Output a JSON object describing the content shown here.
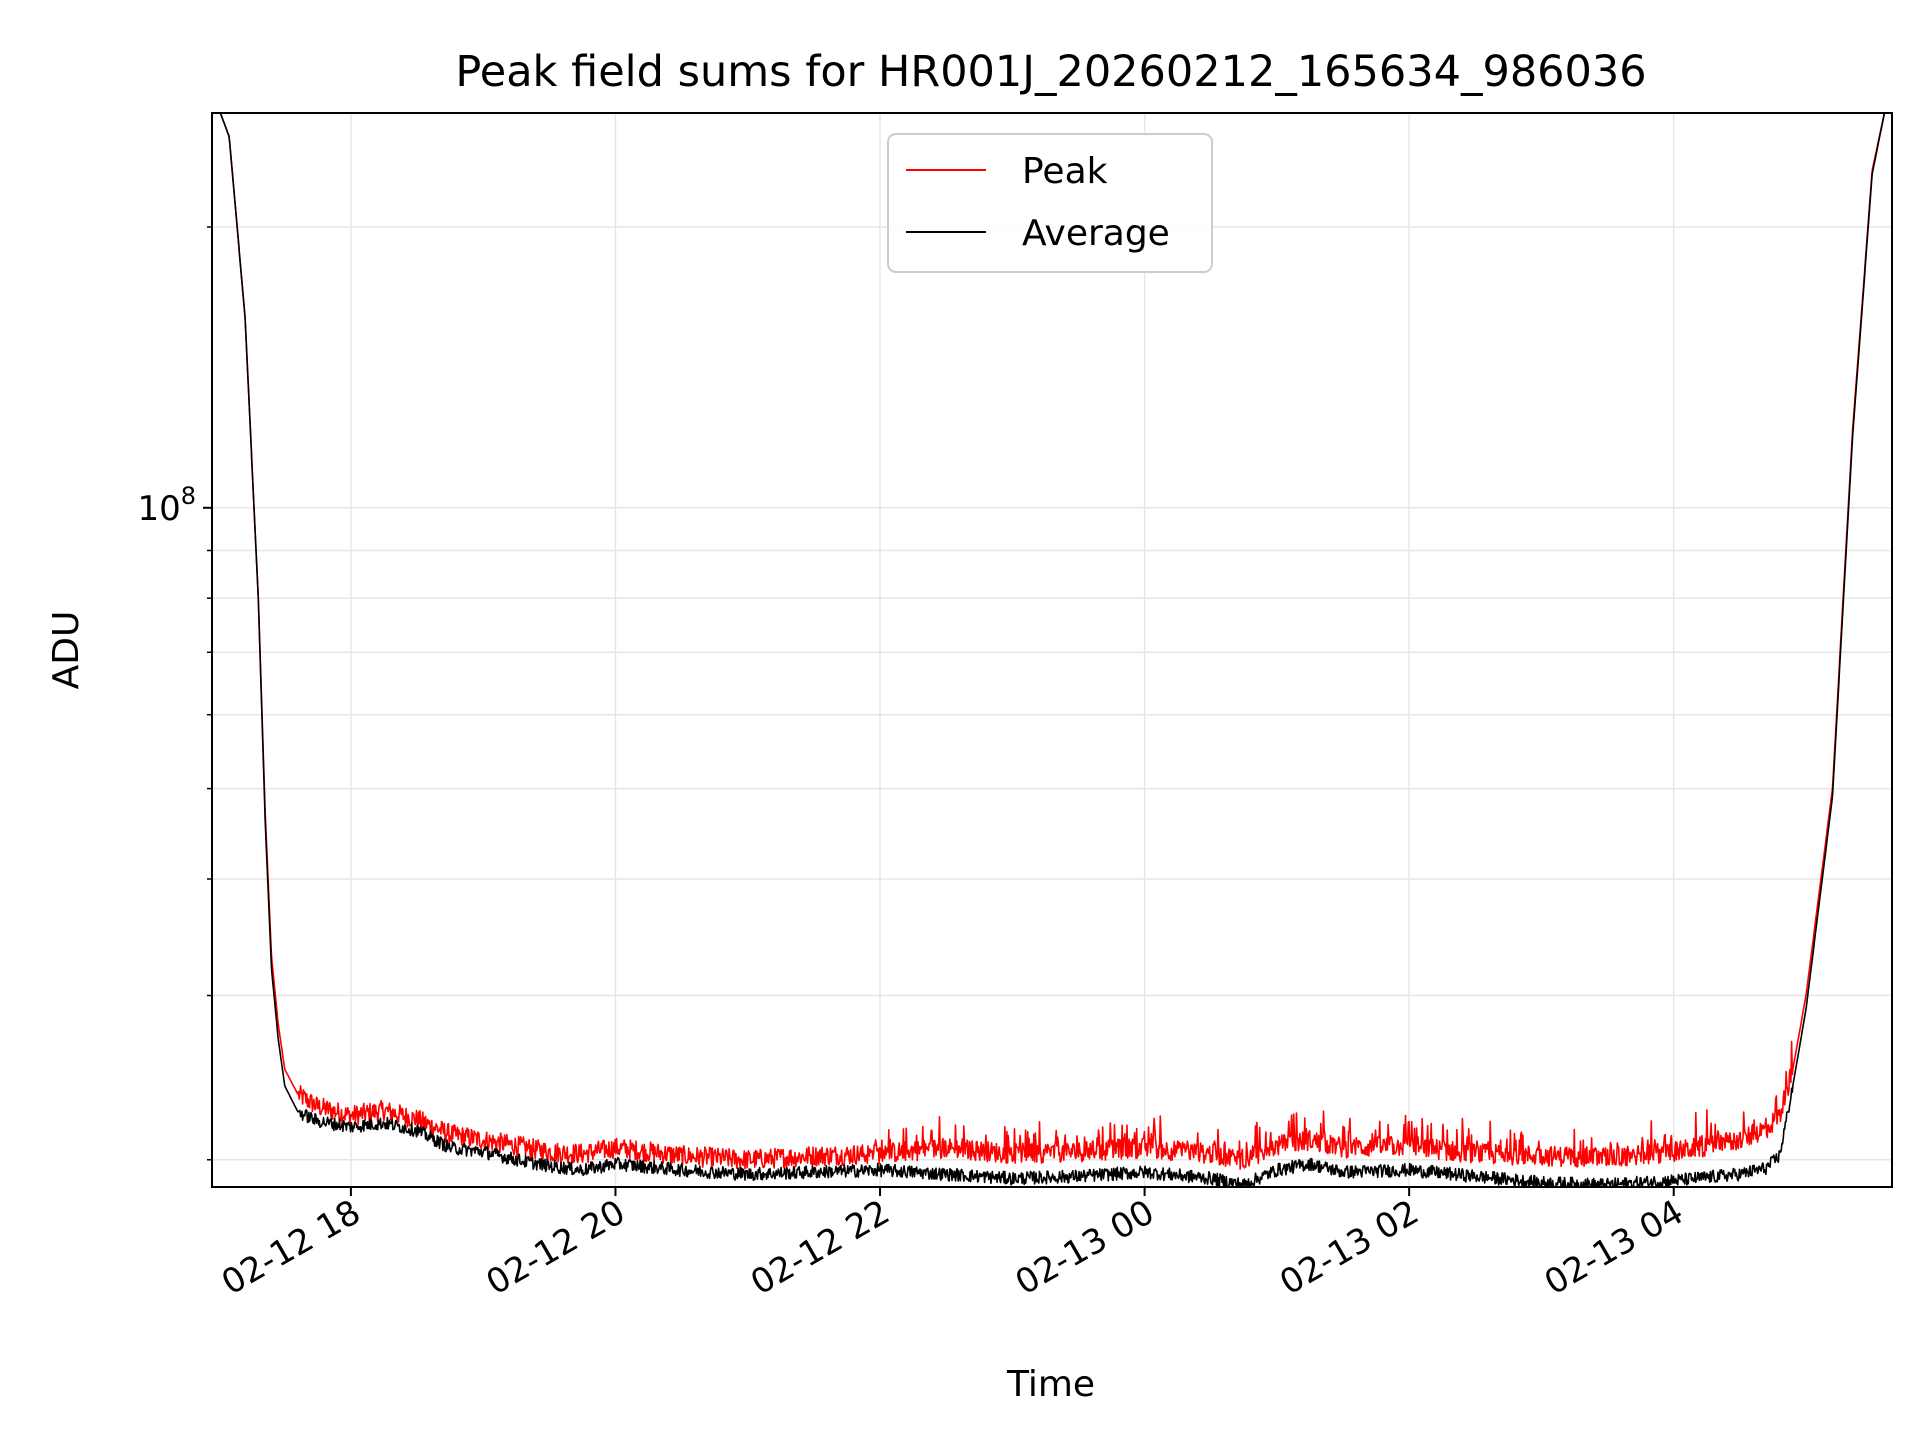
{
  "chart_data": {
    "type": "line",
    "title": "Peak field sums for HR001J_20260212_165634_986036",
    "xlabel": "Time",
    "ylabel": "ADU",
    "yscale": "log",
    "grid": true,
    "legend_position": "top-center",
    "xlim": [
      16.95,
      29.65
    ],
    "ylim": [
      18700000,
      265000000
    ],
    "x_unit": "hours since 02-12 00:00",
    "x_ticks": [
      {
        "value": 18,
        "label": "02-12 18"
      },
      {
        "value": 20,
        "label": "02-12 20"
      },
      {
        "value": 22,
        "label": "02-12 22"
      },
      {
        "value": 24,
        "label": "02-13 00"
      },
      {
        "value": 26,
        "label": "02-13 02"
      },
      {
        "value": 28,
        "label": "02-13 04"
      }
    ],
    "y_major_ticks": [
      {
        "value": 100000000,
        "base": "10",
        "exponent": "8"
      }
    ],
    "y_minor_ticks": [
      20000000,
      30000000,
      40000000,
      50000000,
      60000000,
      70000000,
      80000000,
      90000000,
      200000000
    ],
    "series": [
      {
        "name": "Peak",
        "color": "#ff0000",
        "x": [
          17.0,
          17.08,
          17.2,
          17.3,
          17.35,
          17.4,
          17.45,
          17.5,
          17.6,
          17.75,
          18.0,
          18.25,
          18.5,
          18.75,
          19.0,
          19.25,
          19.5,
          19.75,
          20.0,
          20.5,
          21.0,
          21.5,
          22.0,
          22.5,
          23.0,
          23.5,
          24.0,
          24.5,
          24.75,
          25.0,
          25.25,
          25.5,
          26.0,
          26.5,
          27.0,
          27.5,
          28.0,
          28.5,
          28.7,
          28.8,
          28.9,
          29.0,
          29.2,
          29.35,
          29.5,
          29.6
        ],
        "y": [
          268000000,
          250000000,
          160000000,
          80000000,
          48000000,
          33000000,
          28000000,
          25000000,
          23500000,
          22800000,
          22300000,
          22600000,
          22100000,
          21300000,
          21000000,
          20700000,
          20400000,
          20300000,
          20600000,
          20200000,
          20000000,
          20200000,
          20300000,
          20600000,
          20300000,
          20400000,
          20600000,
          20300000,
          20000000,
          20700000,
          21000000,
          20600000,
          20700000,
          20300000,
          20200000,
          20100000,
          20400000,
          21000000,
          21600000,
          22300000,
          25000000,
          30000000,
          50000000,
          120000000,
          230000000,
          268000000
        ]
      },
      {
        "name": "Average",
        "color": "#000000",
        "x": [
          17.0,
          17.08,
          17.2,
          17.3,
          17.35,
          17.4,
          17.45,
          17.5,
          17.6,
          17.75,
          18.0,
          18.25,
          18.5,
          18.75,
          19.0,
          19.25,
          19.5,
          19.75,
          20.0,
          20.5,
          21.0,
          21.5,
          22.0,
          22.5,
          23.0,
          23.5,
          24.0,
          24.5,
          24.75,
          25.0,
          25.25,
          25.5,
          26.0,
          26.5,
          27.0,
          27.5,
          28.0,
          28.5,
          28.7,
          28.8,
          28.9,
          29.0,
          29.2,
          29.35,
          29.5,
          29.6
        ],
        "y": [
          268000000,
          250000000,
          160000000,
          80000000,
          47000000,
          32000000,
          27000000,
          24000000,
          22500000,
          22000000,
          21700000,
          21900000,
          21500000,
          20600000,
          20400000,
          20000000,
          19700000,
          19500000,
          19800000,
          19500000,
          19300000,
          19400000,
          19500000,
          19300000,
          19100000,
          19200000,
          19400000,
          19100000,
          18800000,
          19500000,
          19800000,
          19400000,
          19500000,
          19200000,
          18900000,
          18800000,
          19000000,
          19300000,
          19600000,
          20200000,
          24000000,
          29000000,
          49000000,
          118000000,
          228000000,
          268000000
        ]
      }
    ]
  }
}
